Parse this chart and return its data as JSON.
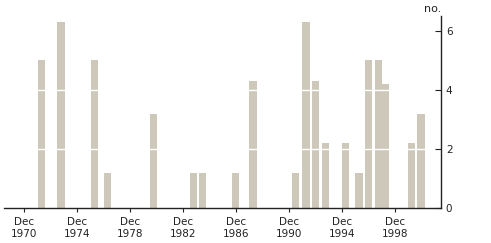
{
  "bars": [
    {
      "x": 1971.3,
      "height": 5.0
    },
    {
      "x": 1972.8,
      "height": 6.3
    },
    {
      "x": 1975.3,
      "height": 5.0
    },
    {
      "x": 1976.3,
      "height": 1.2
    },
    {
      "x": 1979.8,
      "height": 3.2
    },
    {
      "x": 1982.8,
      "height": 1.2
    },
    {
      "x": 1983.5,
      "height": 1.2
    },
    {
      "x": 1986.0,
      "height": 1.2
    },
    {
      "x": 1987.3,
      "height": 4.3
    },
    {
      "x": 1990.5,
      "height": 1.2
    },
    {
      "x": 1991.3,
      "height": 6.3
    },
    {
      "x": 1992.0,
      "height": 4.3
    },
    {
      "x": 1992.8,
      "height": 2.2
    },
    {
      "x": 1994.3,
      "height": 2.2
    },
    {
      "x": 1995.3,
      "height": 1.2
    },
    {
      "x": 1996.0,
      "height": 5.0
    },
    {
      "x": 1996.8,
      "height": 5.0
    },
    {
      "x": 1997.3,
      "height": 4.2
    },
    {
      "x": 1999.3,
      "height": 2.2
    },
    {
      "x": 2000.0,
      "height": 3.2
    }
  ],
  "bar_color": "#cec8ba",
  "bar_width": 0.55,
  "ylim": [
    0,
    6.5
  ],
  "yticks": [
    0,
    2,
    4,
    6
  ],
  "xlim": [
    1968.5,
    2001.5
  ],
  "xtick_positions": [
    1970,
    1974,
    1978,
    1982,
    1986,
    1990,
    1994,
    1998
  ],
  "xtick_labels": [
    "Dec\n1970",
    "Dec\n1974",
    "Dec\n1978",
    "Dec\n1982",
    "Dec\n1986",
    "Dec\n1990",
    "Dec\n1994",
    "Dec\n1998"
  ],
  "ylabel_right": "no.",
  "spine_color": "#222222",
  "bg_color": "#ffffff",
  "tick_fontsize": 7.5,
  "ylabel_fontsize": 8
}
